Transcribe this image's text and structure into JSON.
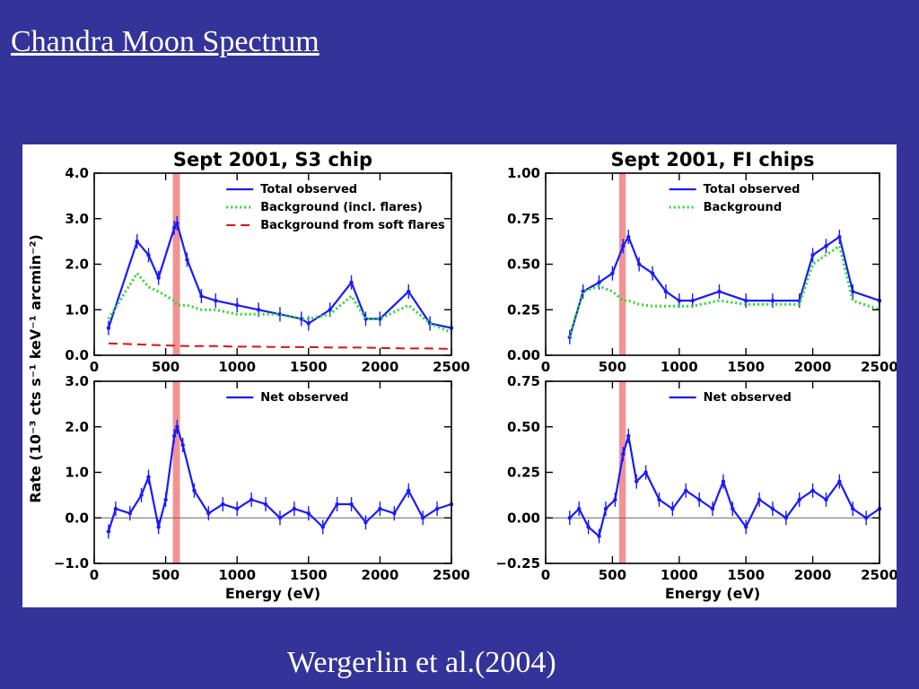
{
  "slide": {
    "title": "Chandra Moon Spectrum",
    "citation": "Wergerlin et al.(2004)"
  },
  "figure": {
    "ylabel": "Rate (10⁻³ cts s⁻¹ keV⁻¹ arcmin⁻²)",
    "highlight_band_ev": [
      550,
      600
    ],
    "colors": {
      "total": "#1a1aff",
      "background": "#22dd22",
      "soft_flares": "#dd1111",
      "band": "#f08080"
    }
  },
  "chart_data": [
    {
      "type": "line",
      "title": "Sept 2001, S3 chip",
      "xlabel": "",
      "ylabel": "Rate (10⁻³ cts s⁻¹ keV⁻¹ arcmin⁻²)",
      "xlim": [
        0,
        2500
      ],
      "ylim": [
        0,
        4
      ],
      "xticks": [
        "0",
        "500",
        "1000",
        "1500",
        "2000",
        "2500"
      ],
      "yticks": [
        "0.0",
        "1.0",
        "2.0",
        "3.0",
        "4.0"
      ],
      "legend": "top-right",
      "x": [
        100,
        300,
        380,
        450,
        560,
        580,
        650,
        750,
        850,
        1000,
        1150,
        1300,
        1450,
        1500,
        1650,
        1800,
        1900,
        2000,
        2200,
        2350,
        2500
      ],
      "series": [
        {
          "name": "Total observed",
          "style": "solid",
          "values": [
            0.6,
            2.5,
            2.2,
            1.7,
            2.8,
            2.9,
            2.1,
            1.3,
            1.2,
            1.1,
            1.0,
            0.9,
            0.8,
            0.7,
            1.0,
            1.6,
            0.8,
            0.8,
            1.4,
            0.7,
            0.6
          ]
        },
        {
          "name": "Background (incl. flares)",
          "style": "dotted",
          "values": [
            0.8,
            1.8,
            1.5,
            1.4,
            1.2,
            1.1,
            1.1,
            1.0,
            1.0,
            0.9,
            0.9,
            0.9,
            0.8,
            0.8,
            0.9,
            1.3,
            0.8,
            0.8,
            1.1,
            0.7,
            0.5
          ]
        },
        {
          "name": "Background from soft flares",
          "style": "dashed",
          "values": [
            0.26,
            0.24,
            0.23,
            0.22,
            0.21,
            0.21,
            0.2,
            0.2,
            0.2,
            0.19,
            0.19,
            0.18,
            0.18,
            0.18,
            0.17,
            0.17,
            0.17,
            0.16,
            0.15,
            0.15,
            0.14
          ]
        }
      ]
    },
    {
      "type": "line",
      "title": "Sept 2001, FI chips",
      "xlabel": "",
      "ylabel": "",
      "xlim": [
        0,
        2500
      ],
      "ylim": [
        0,
        1
      ],
      "xticks": [
        "0",
        "500",
        "1000",
        "1500",
        "2000",
        "2500"
      ],
      "yticks": [
        "0.00",
        "0.25",
        "0.50",
        "0.75",
        "1.00"
      ],
      "legend": "top-right",
      "x": [
        180,
        280,
        400,
        500,
        580,
        620,
        700,
        800,
        900,
        1000,
        1100,
        1300,
        1500,
        1700,
        1900,
        2000,
        2100,
        2200,
        2300,
        2500
      ],
      "series": [
        {
          "name": "Total observed",
          "style": "solid",
          "values": [
            0.1,
            0.35,
            0.4,
            0.45,
            0.6,
            0.65,
            0.5,
            0.45,
            0.35,
            0.3,
            0.3,
            0.35,
            0.3,
            0.3,
            0.3,
            0.55,
            0.6,
            0.65,
            0.35,
            0.3
          ]
        },
        {
          "name": "Background",
          "style": "dotted",
          "values": [
            0.1,
            0.35,
            0.38,
            0.35,
            0.3,
            0.3,
            0.28,
            0.27,
            0.27,
            0.27,
            0.27,
            0.3,
            0.28,
            0.28,
            0.28,
            0.5,
            0.55,
            0.6,
            0.3,
            0.25
          ]
        }
      ]
    },
    {
      "type": "line",
      "title": "",
      "xlabel": "Energy (eV)",
      "ylabel": "",
      "xlim": [
        0,
        2500
      ],
      "ylim": [
        -1,
        3
      ],
      "xticks": [
        "0",
        "500",
        "1000",
        "1500",
        "2000",
        "2500"
      ],
      "yticks": [
        "−1.0",
        "0.0",
        "1.0",
        "2.0",
        "3.0"
      ],
      "legend": "top-right",
      "x": [
        100,
        150,
        250,
        330,
        380,
        450,
        500,
        560,
        580,
        620,
        700,
        800,
        900,
        1000,
        1100,
        1200,
        1300,
        1400,
        1500,
        1600,
        1700,
        1800,
        1900,
        2000,
        2100,
        2200,
        2300,
        2400,
        2500
      ],
      "series": [
        {
          "name": "Net observed",
          "style": "solid",
          "values": [
            -0.3,
            0.2,
            0.1,
            0.5,
            0.9,
            -0.2,
            0.4,
            1.8,
            2.0,
            1.6,
            0.6,
            0.1,
            0.3,
            0.2,
            0.4,
            0.3,
            0.0,
            0.2,
            0.1,
            -0.2,
            0.3,
            0.3,
            -0.1,
            0.2,
            0.1,
            0.6,
            0.0,
            0.2,
            0.3
          ]
        }
      ]
    },
    {
      "type": "line",
      "title": "",
      "xlabel": "Energy (eV)",
      "ylabel": "",
      "xlim": [
        0,
        2500
      ],
      "ylim": [
        -0.25,
        0.75
      ],
      "xticks": [
        "0",
        "500",
        "1000",
        "1500",
        "2000",
        "2500"
      ],
      "yticks": [
        "−0.25",
        "0.00",
        "0.25",
        "0.50",
        "0.75"
      ],
      "legend": "top-right",
      "x": [
        180,
        250,
        320,
        400,
        450,
        520,
        580,
        620,
        680,
        750,
        850,
        950,
        1050,
        1150,
        1250,
        1330,
        1400,
        1500,
        1600,
        1700,
        1800,
        1900,
        2000,
        2100,
        2200,
        2300,
        2400,
        2500
      ],
      "series": [
        {
          "name": "Net observed",
          "style": "solid",
          "values": [
            0.0,
            0.05,
            -0.05,
            -0.1,
            0.05,
            0.1,
            0.35,
            0.45,
            0.2,
            0.25,
            0.1,
            0.05,
            0.15,
            0.1,
            0.05,
            0.2,
            0.05,
            -0.05,
            0.1,
            0.05,
            0.0,
            0.1,
            0.15,
            0.1,
            0.2,
            0.05,
            0.0,
            0.05
          ]
        }
      ]
    }
  ]
}
